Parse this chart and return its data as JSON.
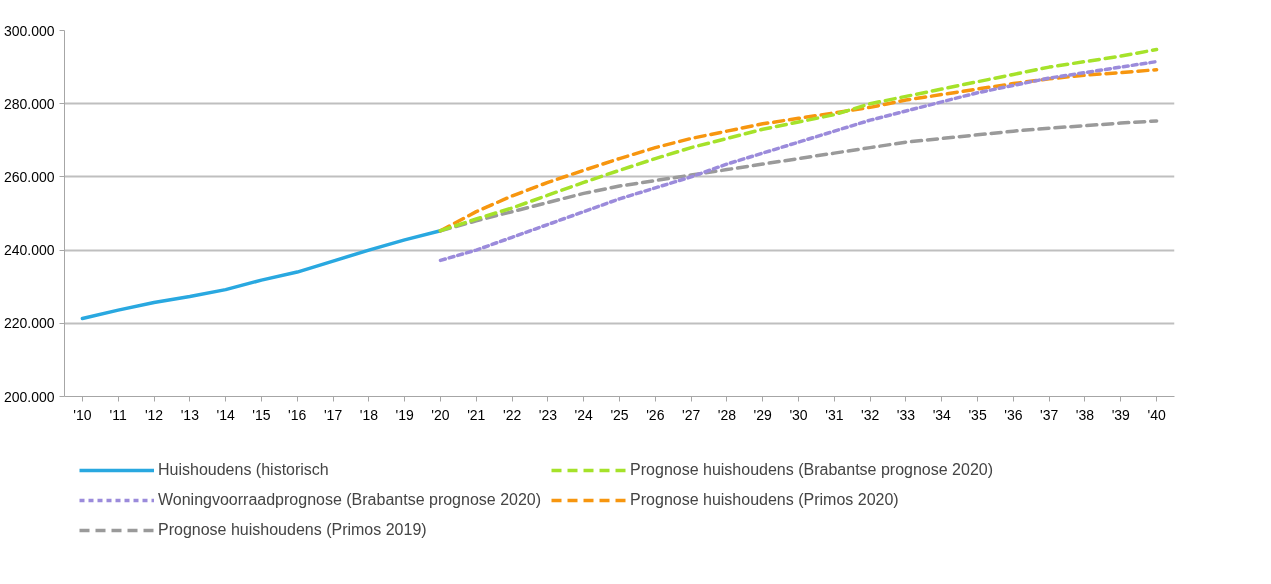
{
  "chart_data": {
    "type": "line",
    "categories": [
      "'10",
      "'11",
      "'12",
      "'13",
      "'14",
      "'15",
      "'16",
      "'17",
      "'18",
      "'19",
      "'20",
      "'21",
      "'22",
      "'23",
      "'24",
      "'25",
      "'26",
      "'27",
      "'28",
      "'29",
      "'30",
      "'31",
      "'32",
      "'33",
      "'34",
      "'35",
      "'36",
      "'37",
      "'38",
      "'39",
      "'40"
    ],
    "series": [
      {
        "name": "Huishoudens (historisch",
        "color": "#29a8e0",
        "line_style": "solid",
        "values": [
          221300,
          223600,
          225700,
          227300,
          229200,
          231800,
          234000,
          237000,
          240000,
          242800,
          245300,
          null,
          null,
          null,
          null,
          null,
          null,
          null,
          null,
          null,
          null,
          null,
          null,
          null,
          null,
          null,
          null,
          null,
          null,
          null,
          null
        ]
      },
      {
        "name": "Prognose huishoudens (Brabantse prognose 2020)",
        "color": "#a5e22a",
        "line_style": "dashed",
        "values": [
          null,
          null,
          null,
          null,
          null,
          null,
          null,
          null,
          null,
          null,
          245300,
          248500,
          251500,
          255000,
          258500,
          261800,
          265000,
          268000,
          270500,
          273000,
          275000,
          277000,
          280000,
          282000,
          284000,
          286000,
          288000,
          290000,
          291500,
          293000,
          294800
        ]
      },
      {
        "name": "Woningvoorraadprognose (Brabantse prognose 2020)",
        "color": "#9b8bdb",
        "line_style": "dotted",
        "values": [
          null,
          null,
          null,
          null,
          null,
          null,
          null,
          null,
          null,
          null,
          237200,
          240000,
          243500,
          247000,
          250500,
          254000,
          257000,
          260000,
          263500,
          266500,
          269500,
          272500,
          275500,
          278000,
          280500,
          283000,
          285000,
          287000,
          288500,
          290000,
          291500
        ]
      },
      {
        "name": "Prognose huishoudens (Primos 2020)",
        "color": "#f7960f",
        "line_style": "dashed",
        "values": [
          null,
          null,
          null,
          null,
          null,
          null,
          null,
          null,
          null,
          null,
          245300,
          250500,
          254800,
          258500,
          261800,
          265000,
          268000,
          270500,
          272500,
          274500,
          276000,
          277500,
          279000,
          281000,
          282500,
          284000,
          285500,
          286800,
          287800,
          288500,
          289300
        ]
      },
      {
        "name": "Prognose huishoudens (Primos 2019)",
        "color": "#9a9a9a",
        "line_style": "dashed",
        "values": [
          null,
          null,
          null,
          null,
          null,
          null,
          null,
          null,
          null,
          null,
          245300,
          248000,
          250500,
          253000,
          255500,
          257500,
          259000,
          260500,
          262000,
          263500,
          265000,
          266500,
          268000,
          269500,
          270500,
          271500,
          272500,
          273300,
          274000,
          274700,
          275300
        ]
      }
    ],
    "ylim": [
      200000,
      300000
    ],
    "yticks": [
      {
        "value": 200000,
        "label": "200.000"
      },
      {
        "value": 220000,
        "label": "220.000"
      },
      {
        "value": 240000,
        "label": "240.000"
      },
      {
        "value": 260000,
        "label": "260.000"
      },
      {
        "value": 280000,
        "label": "280.000"
      },
      {
        "value": 300000,
        "label": "300.000"
      }
    ],
    "grid": "y",
    "legend": "bottom",
    "marker": "none"
  }
}
